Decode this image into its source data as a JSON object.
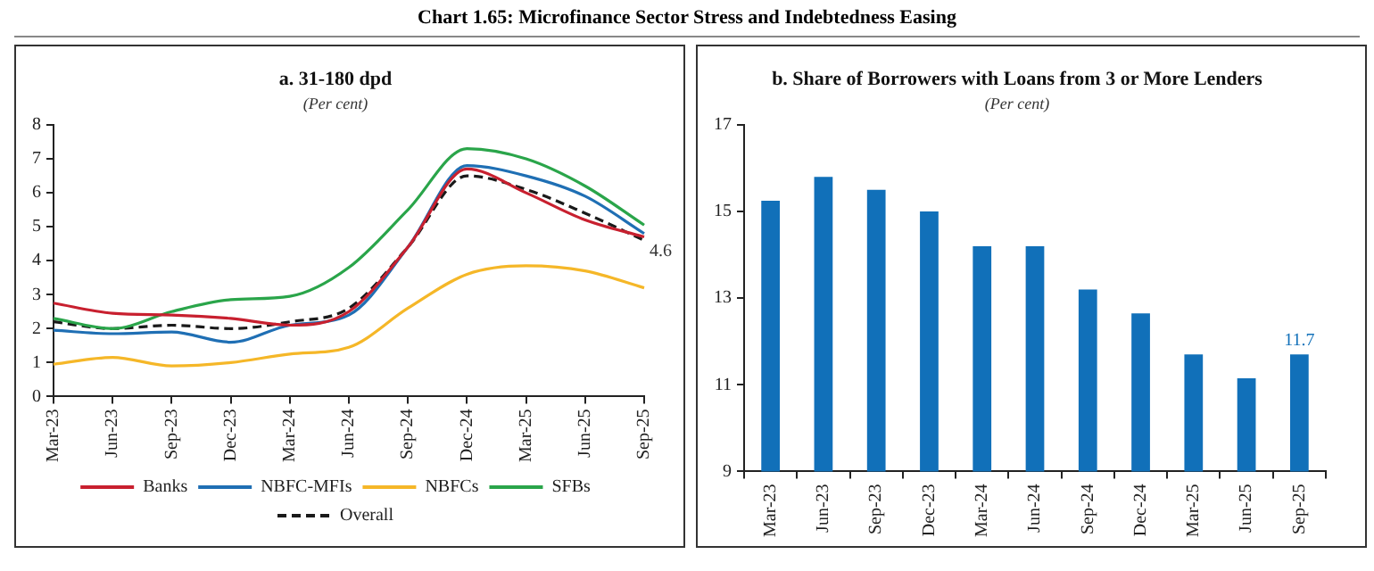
{
  "chart_data": [
    {
      "type": "line",
      "title": "a. 31-180 dpd",
      "subtitle": "(Per cent)",
      "annotations": [
        "Chart 1.65: Microfinance Sector Stress and Indebtedness Easing"
      ],
      "categories": [
        "Mar-23",
        "Jun-23",
        "Sep-23",
        "Dec-23",
        "Mar-24",
        "Jun-24",
        "Sep-24",
        "Dec-24",
        "Mar-25",
        "Jun-25",
        "Sep-25"
      ],
      "series": [
        {
          "name": "Banks",
          "color": "#c8202f",
          "values": [
            2.75,
            2.45,
            2.4,
            2.3,
            2.1,
            2.5,
            4.4,
            6.7,
            6.0,
            5.2,
            4.7
          ]
        },
        {
          "name": "NBFC-MFIs",
          "color": "#1f6fb4",
          "values": [
            1.95,
            1.85,
            1.9,
            1.6,
            2.1,
            2.4,
            4.4,
            6.8,
            6.5,
            5.9,
            4.8
          ]
        },
        {
          "name": "NBFCs",
          "color": "#f5b728",
          "values": [
            0.95,
            1.15,
            0.9,
            1.0,
            1.25,
            1.45,
            2.6,
            3.6,
            3.85,
            3.7,
            3.2
          ]
        },
        {
          "name": "SFBs",
          "color": "#2aa54a",
          "values": [
            2.3,
            2.0,
            2.5,
            2.85,
            2.95,
            3.8,
            5.5,
            7.3,
            7.0,
            6.2,
            5.05
          ]
        },
        {
          "name": "Overall",
          "color": "#1a1a1a",
          "line_style": "dashed",
          "values": [
            2.2,
            2.0,
            2.1,
            2.0,
            2.2,
            2.6,
            4.4,
            6.5,
            6.1,
            5.4,
            4.6
          ],
          "value_labels": [
            null,
            null,
            null,
            null,
            null,
            null,
            null,
            null,
            null,
            null,
            "4.6"
          ]
        }
      ],
      "ylim": [
        0,
        8
      ],
      "yticks": [
        0,
        1,
        2,
        3,
        4,
        5,
        6,
        7,
        8
      ],
      "grid": false,
      "legend": "bottom",
      "marker": "none"
    },
    {
      "type": "bar",
      "title": "b. Share of Borrowers with Loans from 3 or More Lenders",
      "subtitle": "(Per cent)",
      "categories": [
        "Mar-23",
        "Jun-23",
        "Sep-23",
        "Dec-23",
        "Mar-24",
        "Jun-24",
        "Sep-24",
        "Dec-24",
        "Mar-25",
        "Jun-25",
        "Sep-25"
      ],
      "values": [
        15.25,
        15.8,
        15.5,
        15.0,
        14.2,
        14.2,
        13.2,
        12.65,
        11.7,
        11.15,
        11.7
      ],
      "value_labels": [
        null,
        null,
        null,
        null,
        null,
        null,
        null,
        null,
        null,
        null,
        "11.7"
      ],
      "color": "#1170b9",
      "ylim": [
        9,
        17
      ],
      "yticks": [
        9,
        11,
        13,
        15,
        17
      ],
      "grid": false
    }
  ]
}
